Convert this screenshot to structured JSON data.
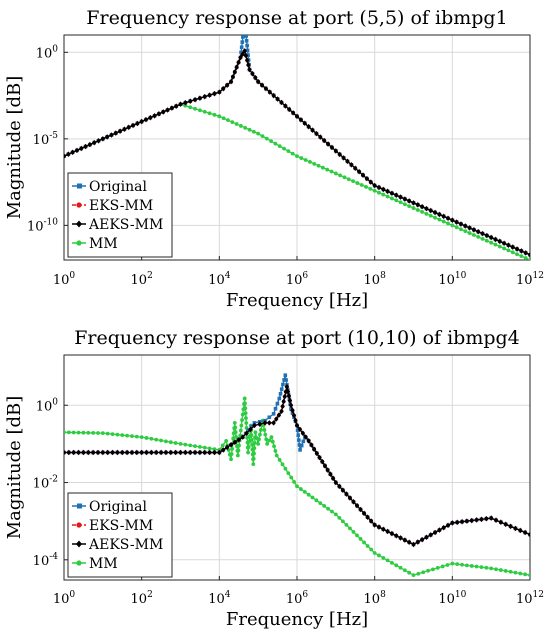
{
  "chart_data": [
    {
      "type": "line",
      "title": "Frequency response at port (5,5) of ibmpg1",
      "xlabel": "Frequency [Hz]",
      "ylabel": "Magnitude [dB]",
      "xscale": "log",
      "yscale": "log",
      "xlim": [
        1,
        1000000000000
      ],
      "ylim": [
        1e-12,
        10.0
      ],
      "grid": true,
      "legend_position": "bottom-left",
      "x_ticks": [
        {
          "base": "10",
          "exp": "0",
          "value": 1
        },
        {
          "base": "10",
          "exp": "2",
          "value": 100
        },
        {
          "base": "10",
          "exp": "4",
          "value": 10000
        },
        {
          "base": "10",
          "exp": "6",
          "value": 1000000
        },
        {
          "base": "10",
          "exp": "8",
          "value": 100000000
        },
        {
          "base": "10",
          "exp": "10",
          "value": 10000000000
        },
        {
          "base": "10",
          "exp": "12",
          "value": 1000000000000
        }
      ],
      "y_ticks": [
        {
          "base": "10",
          "exp": "0",
          "value": 1
        },
        {
          "base": "10",
          "exp": "-5",
          "value": 1e-05
        },
        {
          "base": "10",
          "exp": "-10",
          "value": 1e-10
        }
      ],
      "series": [
        {
          "name": "Original",
          "color": "#2171b5",
          "marker": "square",
          "dashed": false,
          "x": [
            1,
            10,
            100,
            1000,
            10000,
            20000,
            35000,
            45000,
            60000,
            100000,
            1000000,
            10000000,
            100000000,
            1000000000,
            10000000000,
            100000000000,
            1000000000000
          ],
          "y": [
            1e-06,
            1e-05,
            0.0001,
            0.001,
            0.005,
            0.02,
            0.5,
            60,
            0.1,
            0.02,
            0.0002,
            2e-06,
            2e-08,
            2e-09,
            2e-10,
            2e-11,
            2e-12
          ]
        },
        {
          "name": "EKS-MM",
          "color": "#e31a1c",
          "marker": "circle",
          "dashed": true,
          "x": [
            1,
            10,
            100,
            1000,
            10000,
            20000,
            35000,
            45000,
            60000,
            100000,
            1000000,
            10000000,
            100000000,
            1000000000,
            10000000000,
            100000000000,
            1000000000000
          ],
          "y": [
            1e-06,
            1e-05,
            0.0001,
            0.001,
            0.005,
            0.02,
            0.5,
            1.2,
            0.1,
            0.02,
            0.0002,
            2e-06,
            2e-08,
            2e-09,
            2e-10,
            2e-11,
            2e-12
          ]
        },
        {
          "name": "AEKS-MM",
          "color": "#000000",
          "marker": "diamond",
          "dashed": false,
          "x": [
            1,
            10,
            100,
            1000,
            10000,
            20000,
            35000,
            45000,
            60000,
            100000,
            1000000,
            10000000,
            100000000,
            1000000000,
            10000000000,
            100000000000,
            1000000000000
          ],
          "y": [
            1e-06,
            1e-05,
            0.0001,
            0.001,
            0.005,
            0.02,
            0.5,
            1.2,
            0.1,
            0.02,
            0.0002,
            2e-06,
            2e-08,
            2e-09,
            2e-10,
            2e-11,
            2e-12
          ]
        },
        {
          "name": "MM",
          "color": "#2ecc40",
          "marker": "circle",
          "dashed": false,
          "x": [
            1,
            10,
            100,
            1000,
            10000,
            100000,
            1000000,
            10000000,
            100000000,
            1000000000,
            10000000000,
            100000000000,
            1000000000000
          ],
          "y": [
            1e-06,
            1e-05,
            0.0001,
            0.001,
            0.0002,
            2e-05,
            1e-06,
            1e-07,
            1e-08,
            1e-09,
            1e-10,
            1e-11,
            1e-12
          ]
        }
      ]
    },
    {
      "type": "line",
      "title": "Frequency response at port (10,10) of ibmpg4",
      "xlabel": "Frequency [Hz]",
      "ylabel": "Magnitude [dB]",
      "xscale": "log",
      "yscale": "log",
      "xlim": [
        1,
        1000000000000
      ],
      "ylim": [
        3e-05,
        20
      ],
      "grid": true,
      "legend_position": "bottom-left",
      "x_ticks": [
        {
          "base": "10",
          "exp": "0",
          "value": 1
        },
        {
          "base": "10",
          "exp": "2",
          "value": 100
        },
        {
          "base": "10",
          "exp": "4",
          "value": 10000
        },
        {
          "base": "10",
          "exp": "6",
          "value": 1000000
        },
        {
          "base": "10",
          "exp": "8",
          "value": 100000000
        },
        {
          "base": "10",
          "exp": "10",
          "value": 10000000000
        },
        {
          "base": "10",
          "exp": "12",
          "value": 1000000000000
        }
      ],
      "y_ticks": [
        {
          "base": "10",
          "exp": "0",
          "value": 1
        },
        {
          "base": "10",
          "exp": "-2",
          "value": 0.01
        },
        {
          "base": "10",
          "exp": "-4",
          "value": 0.0001
        }
      ],
      "series": [
        {
          "name": "Original",
          "color": "#2171b5",
          "marker": "square",
          "dashed": false,
          "x": [
            1,
            10,
            100,
            1000,
            10000,
            40000,
            80000,
            150000,
            250000,
            350000,
            500000,
            700000,
            1000000,
            1200000,
            1600000,
            2000000,
            10000000,
            100000000,
            1000000000,
            10000000000,
            100000000000,
            1000000000000
          ],
          "y": [
            0.06,
            0.06,
            0.06,
            0.06,
            0.06,
            0.15,
            0.35,
            0.4,
            0.6,
            1.5,
            6,
            0.8,
            0.3,
            0.07,
            0.15,
            0.12,
            0.01,
            0.0008,
            0.00025,
            0.0009,
            0.0012,
            0.00045
          ]
        },
        {
          "name": "EKS-MM",
          "color": "#e31a1c",
          "marker": "circle",
          "dashed": true,
          "x": [
            1,
            10,
            100,
            1000,
            10000,
            40000,
            80000,
            150000,
            250000,
            400000,
            550000,
            700000,
            1000000,
            2000000,
            10000000,
            100000000,
            1000000000,
            10000000000,
            100000000000,
            1000000000000
          ],
          "y": [
            0.06,
            0.06,
            0.06,
            0.06,
            0.06,
            0.15,
            0.3,
            0.35,
            0.35,
            0.7,
            3,
            1,
            0.3,
            0.12,
            0.01,
            0.0008,
            0.00025,
            0.0009,
            0.0012,
            0.00045
          ]
        },
        {
          "name": "AEKS-MM",
          "color": "#000000",
          "marker": "diamond",
          "dashed": false,
          "x": [
            1,
            10,
            100,
            1000,
            10000,
            40000,
            80000,
            150000,
            250000,
            400000,
            550000,
            700000,
            1000000,
            2000000,
            10000000,
            100000000,
            1000000000,
            10000000000,
            100000000000,
            1000000000000
          ],
          "y": [
            0.06,
            0.06,
            0.06,
            0.06,
            0.06,
            0.15,
            0.3,
            0.35,
            0.35,
            0.7,
            3,
            1,
            0.3,
            0.12,
            0.01,
            0.0008,
            0.00025,
            0.0009,
            0.0012,
            0.00045
          ]
        },
        {
          "name": "MM",
          "color": "#2ecc40",
          "marker": "circle",
          "dashed": false,
          "x": [
            1,
            10,
            100,
            1000,
            10000,
            15000,
            20000,
            25000,
            30000,
            37000,
            45000,
            55000,
            65000,
            75000,
            85000,
            100000,
            130000,
            170000,
            220000,
            300000,
            1000000,
            10000000,
            100000000,
            1000000000,
            10000000000,
            100000000000,
            1000000000000
          ],
          "y": [
            0.2,
            0.19,
            0.15,
            0.1,
            0.07,
            0.12,
            0.04,
            0.35,
            0.05,
            0.3,
            1.5,
            0.06,
            0.3,
            0.03,
            0.2,
            0.1,
            0.4,
            0.1,
            0.15,
            0.05,
            0.008,
            0.0015,
            0.00015,
            4e-05,
            8e-05,
            6e-05,
            4e-05
          ]
        }
      ]
    }
  ]
}
